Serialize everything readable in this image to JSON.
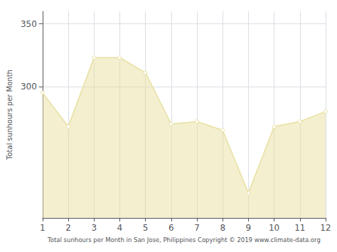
{
  "chart_data": {
    "type": "area",
    "x_label": "Total sunhours per Month in San Jose, Philippines Copyright © 2019 www.climate-data.org",
    "y_label": "Total sunhours per Month",
    "x": [
      1,
      2,
      3,
      4,
      5,
      6,
      7,
      8,
      9,
      10,
      11,
      12
    ],
    "values": [
      295,
      268,
      323,
      323,
      311,
      270,
      272,
      265,
      215,
      268,
      272,
      280
    ],
    "color": "#E8E0A0",
    "marker": "circle",
    "xlim": [
      1,
      12
    ],
    "xticks": [
      1,
      2,
      3,
      4,
      5,
      6,
      7,
      8,
      9,
      10,
      11,
      12
    ],
    "ylim": [
      195,
      360
    ],
    "yticks": [
      300,
      350
    ],
    "grid": true
  }
}
